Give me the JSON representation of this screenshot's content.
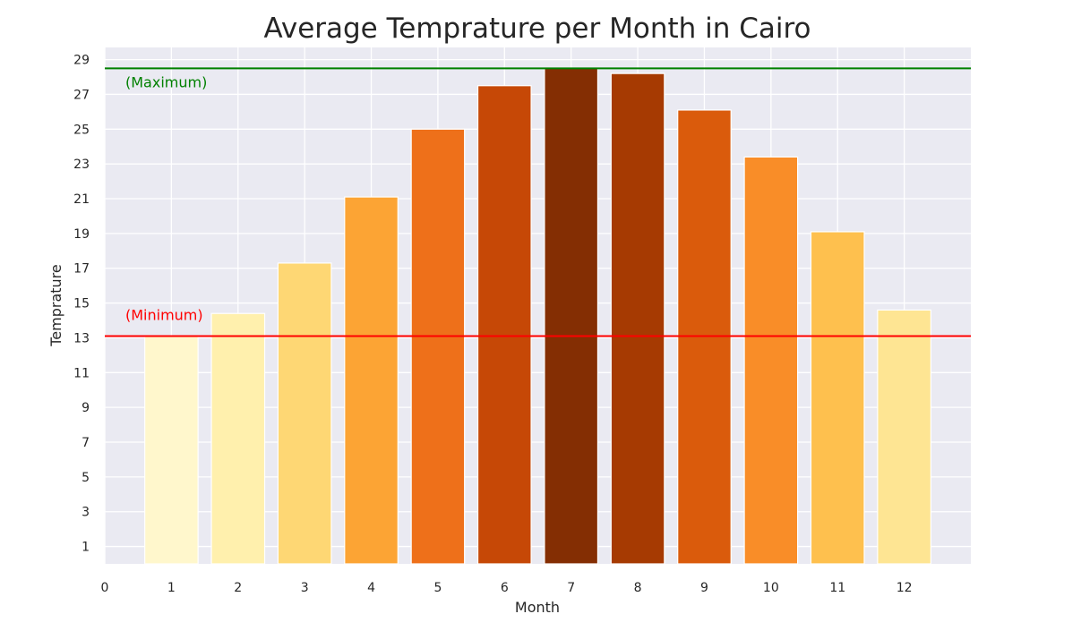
{
  "chart_data": {
    "type": "bar",
    "title": "Average Temprature per Month in Cairo",
    "xlabel": "Month",
    "ylabel": "Temprature",
    "categories": [
      "1",
      "2",
      "3",
      "4",
      "5",
      "6",
      "7",
      "8",
      "9",
      "10",
      "11",
      "12"
    ],
    "values": [
      13.1,
      14.4,
      17.3,
      21.1,
      25.0,
      27.5,
      28.5,
      28.2,
      26.1,
      23.4,
      19.1,
      14.6
    ],
    "colors": [
      "#fff7cc",
      "#fff0ad",
      "#fed774",
      "#fca434",
      "#ee701a",
      "#c64806",
      "#842e03",
      "#a63a02",
      "#da5b0c",
      "#f98d28",
      "#fec04e",
      "#fee593"
    ],
    "xlim": [
      0,
      13
    ],
    "ylim": [
      0,
      29.7
    ],
    "xticks": [
      "0",
      "1",
      "2",
      "3",
      "4",
      "5",
      "6",
      "7",
      "8",
      "9",
      "10",
      "11",
      "12"
    ],
    "yticks": [
      "1",
      "3",
      "5",
      "7",
      "9",
      "11",
      "13",
      "15",
      "17",
      "19",
      "21",
      "23",
      "25",
      "27",
      "29"
    ],
    "grid": true,
    "background": "#eaeaf2",
    "reference_lines": [
      {
        "label": "(Maximum)",
        "value": 28.5,
        "color": "#008000"
      },
      {
        "label": "(Minimum)",
        "value": 13.1,
        "color": "#ff0000"
      }
    ]
  }
}
